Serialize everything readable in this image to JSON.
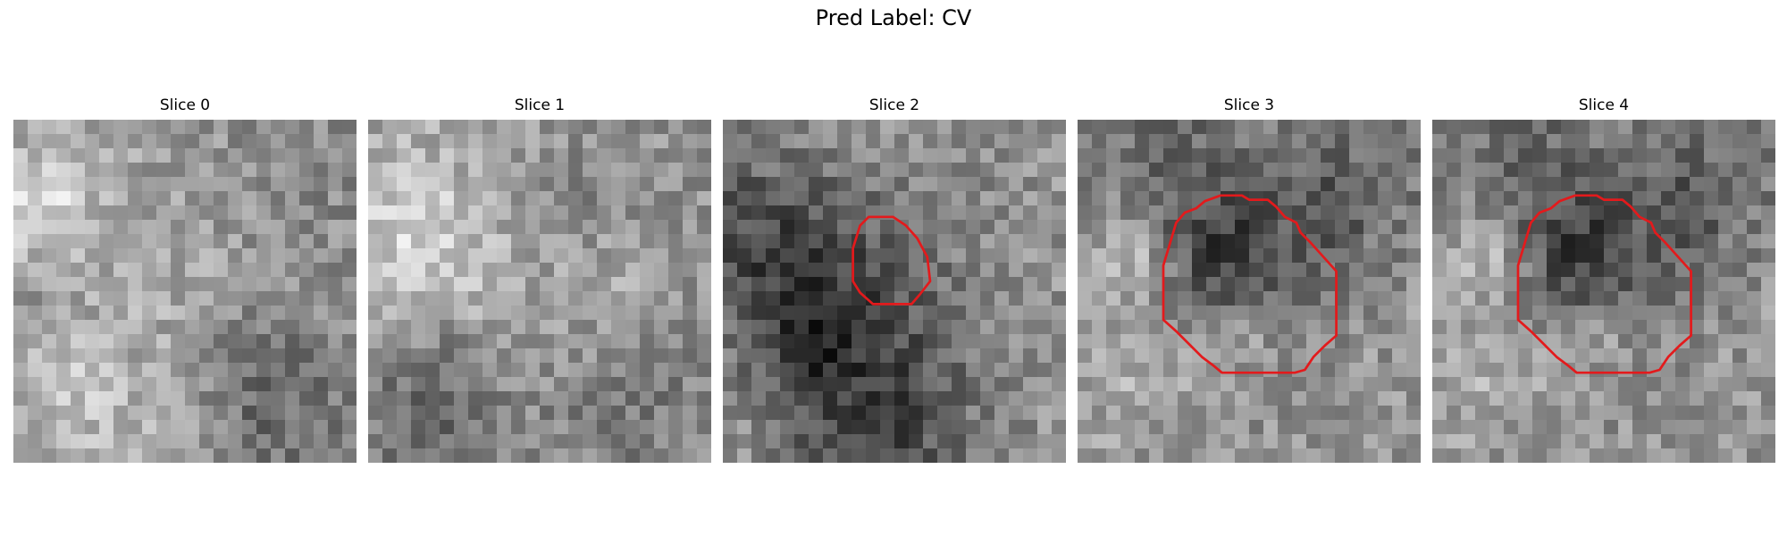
{
  "figure": {
    "title": "Pred Label: CV"
  },
  "colors": {
    "contour": "#e31a1c"
  },
  "panels": [
    {
      "title": "Slice 0",
      "seed": 11,
      "contour": null
    },
    {
      "title": "Slice 1",
      "seed": 23,
      "contour": null
    },
    {
      "title": "Slice 2",
      "seed": 37,
      "contour": "small"
    },
    {
      "title": "Slice 3",
      "seed": 53,
      "contour": "large"
    },
    {
      "title": "Slice 4",
      "seed": 53,
      "contour": "large"
    }
  ]
}
